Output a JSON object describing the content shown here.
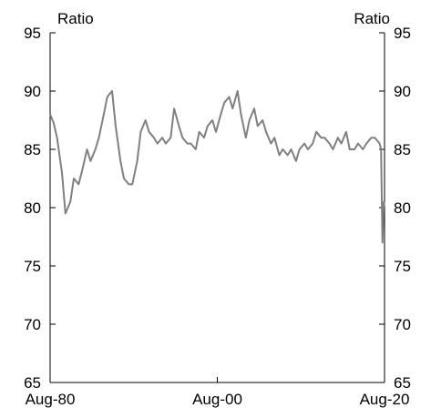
{
  "chart_data": {
    "type": "line",
    "title": "",
    "xlabel": "",
    "left_unit_label": "Ratio",
    "right_unit_label": "Ratio",
    "ylim": [
      65,
      95
    ],
    "yticks": [
      65,
      70,
      75,
      80,
      85,
      90,
      95
    ],
    "xlim": [
      "1980-08",
      "2020-08"
    ],
    "xticks": [
      {
        "label": "Aug-80",
        "x": "1980-08"
      },
      {
        "label": "Aug-00",
        "x": "2000-08"
      },
      {
        "label": "Aug-20",
        "x": "2020-08"
      }
    ],
    "grid": false,
    "legend": "none",
    "line_color": "#808080",
    "series": [
      {
        "x": [
          "1980-08",
          "1981-01",
          "1981-06",
          "1982-01",
          "1982-06",
          "1983-01",
          "1983-06",
          "1984-01",
          "1984-06",
          "1985-01",
          "1985-06",
          "1986-01",
          "1986-06",
          "1987-01",
          "1987-06",
          "1988-01",
          "1988-06",
          "1989-01",
          "1989-06",
          "1990-01",
          "1990-06",
          "1991-01",
          "1991-06",
          "1992-01",
          "1992-06",
          "1993-01",
          "1993-06",
          "1994-01",
          "1994-06",
          "1995-01",
          "1995-06",
          "1996-01",
          "1996-06",
          "1997-01",
          "1997-06",
          "1998-01",
          "1998-06",
          "1999-01",
          "1999-06",
          "2000-01",
          "2000-06",
          "2001-01",
          "2001-06",
          "2002-01",
          "2002-06",
          "2003-01",
          "2003-06",
          "2004-01",
          "2004-06",
          "2005-01",
          "2005-06",
          "2006-01",
          "2006-06",
          "2007-01",
          "2007-06",
          "2008-01",
          "2008-06",
          "2009-01",
          "2009-06",
          "2010-01",
          "2010-06",
          "2011-01",
          "2011-06",
          "2012-01",
          "2012-06",
          "2013-01",
          "2013-06",
          "2014-01",
          "2014-06",
          "2015-01",
          "2015-06",
          "2016-01",
          "2016-06",
          "2017-01",
          "2017-06",
          "2018-01",
          "2018-06",
          "2019-01",
          "2019-06",
          "2020-01",
          "2020-03",
          "2020-05",
          "2020-07",
          "2020-08"
        ],
        "values": [
          88.0,
          87.3,
          86.0,
          83.0,
          79.5,
          80.5,
          82.5,
          82.0,
          83.2,
          85.0,
          84.0,
          85.0,
          86.0,
          88.0,
          89.5,
          90.0,
          87.0,
          84.0,
          82.5,
          82.0,
          82.0,
          84.0,
          86.5,
          87.5,
          86.5,
          86.0,
          85.5,
          86.0,
          85.5,
          86.0,
          88.5,
          87.0,
          86.0,
          85.5,
          85.5,
          85.0,
          86.5,
          86.0,
          87.0,
          87.5,
          86.5,
          88.0,
          89.0,
          89.5,
          88.5,
          90.0,
          88.0,
          86.0,
          87.5,
          88.5,
          87.0,
          87.5,
          86.5,
          85.5,
          86.0,
          84.5,
          85.0,
          84.5,
          85.0,
          84.0,
          85.0,
          85.5,
          85.0,
          85.5,
          86.5,
          86.0,
          86.0,
          85.5,
          85.0,
          86.0,
          85.5,
          86.5,
          85.0,
          85.0,
          85.5,
          85.0,
          85.5,
          86.0,
          86.0,
          85.5,
          85.0,
          77.0,
          80.5,
          80.0
        ]
      }
    ]
  }
}
